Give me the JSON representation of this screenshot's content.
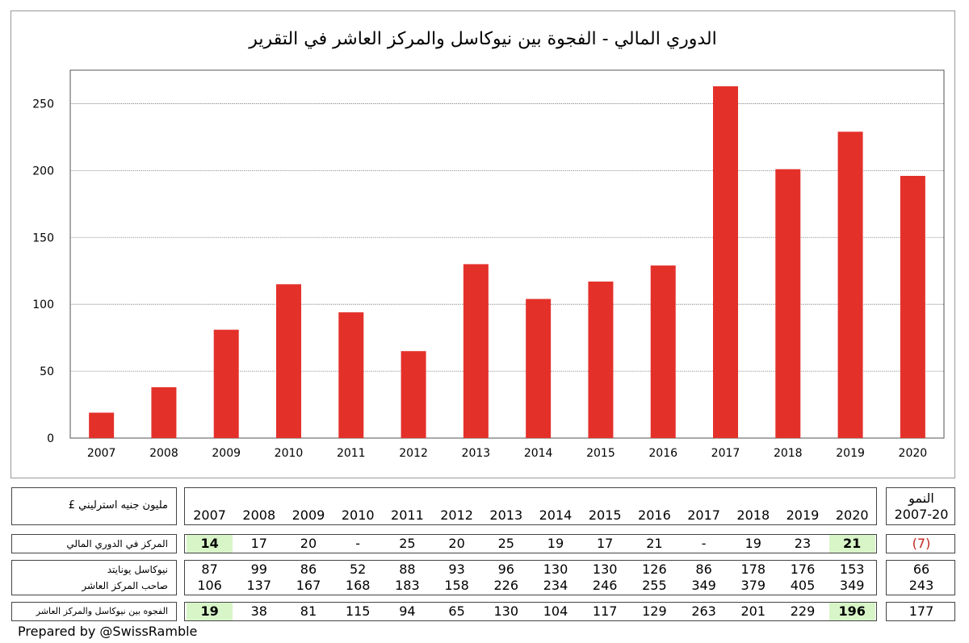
{
  "chart_data": {
    "type": "bar",
    "title": "الدوري المالي - الفجوة بين نيوكاسل والمركز العاشر في التقرير",
    "categories": [
      "2007",
      "2008",
      "2009",
      "2010",
      "2011",
      "2012",
      "2013",
      "2014",
      "2015",
      "2016",
      "2017",
      "2018",
      "2019",
      "2020"
    ],
    "values": [
      19,
      38,
      81,
      115,
      94,
      65,
      130,
      104,
      117,
      129,
      263,
      201,
      229,
      196
    ],
    "yticks": [
      0,
      50,
      100,
      150,
      200,
      250
    ],
    "ylim": [
      0,
      275
    ],
    "grid": true,
    "bar_color": "#e3312a"
  },
  "table": {
    "unit_label": "مليون جنيه استرليني £",
    "years": [
      "2007",
      "2008",
      "2009",
      "2010",
      "2011",
      "2012",
      "2013",
      "2014",
      "2015",
      "2016",
      "2017",
      "2018",
      "2019",
      "2020"
    ],
    "growth_header_line1": "النمو",
    "growth_header_line2": "2007-20",
    "position_row": {
      "label": "المركز في الدوري المالي",
      "values": [
        "14",
        "17",
        "20",
        "-",
        "25",
        "20",
        "25",
        "19",
        "17",
        "21",
        "-",
        "19",
        "23",
        "21"
      ],
      "growth": "(7)"
    },
    "newcastle_row": {
      "label": "نيوكاسل يونايتد",
      "values": [
        "87",
        "99",
        "86",
        "52",
        "88",
        "93",
        "96",
        "130",
        "130",
        "126",
        "86",
        "178",
        "176",
        "153"
      ],
      "growth": "66"
    },
    "tenth_row": {
      "label": "صاحب المركز العاشر",
      "values": [
        "106",
        "137",
        "167",
        "168",
        "183",
        "158",
        "226",
        "234",
        "246",
        "255",
        "349",
        "379",
        "405",
        "349"
      ],
      "growth": "243"
    },
    "gap_row": {
      "label": "الفجوه بين نيوكاسل والمركز العاشر",
      "values": [
        "19",
        "38",
        "81",
        "115",
        "94",
        "65",
        "130",
        "104",
        "117",
        "129",
        "263",
        "201",
        "229",
        "196"
      ],
      "growth": "177"
    }
  },
  "footer": "Prepared by @SwissRamble",
  "colors": {
    "highlight": "#d8f5c8",
    "bar": "#e3312a",
    "negative": "#c0251d"
  }
}
